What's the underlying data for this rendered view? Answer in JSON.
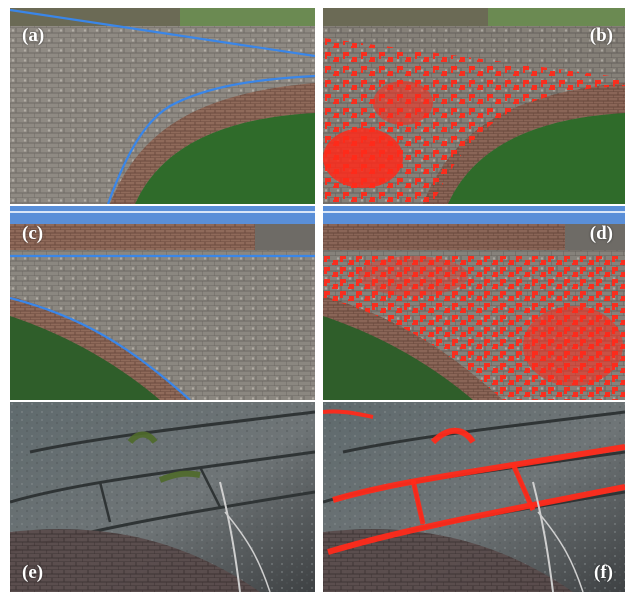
{
  "panels": [
    {
      "id": "a",
      "label": "(a)",
      "kind": "original-with-outline"
    },
    {
      "id": "b",
      "label": "(b)",
      "kind": "detection-overlay"
    },
    {
      "id": "c",
      "label": "(c)",
      "kind": "original-with-outline"
    },
    {
      "id": "d",
      "label": "(d)",
      "kind": "detection-overlay"
    },
    {
      "id": "e",
      "label": "(e)",
      "kind": "original"
    },
    {
      "id": "f",
      "label": "(f)",
      "kind": "detection-overlay"
    }
  ],
  "colors": {
    "outline": "#3a86e8",
    "detection": "#ff2a1a",
    "stone": "#8f8a83",
    "brick": "#8f6a5a",
    "vegetation": "#3b6b2d",
    "sky": "#5a8fd8"
  }
}
